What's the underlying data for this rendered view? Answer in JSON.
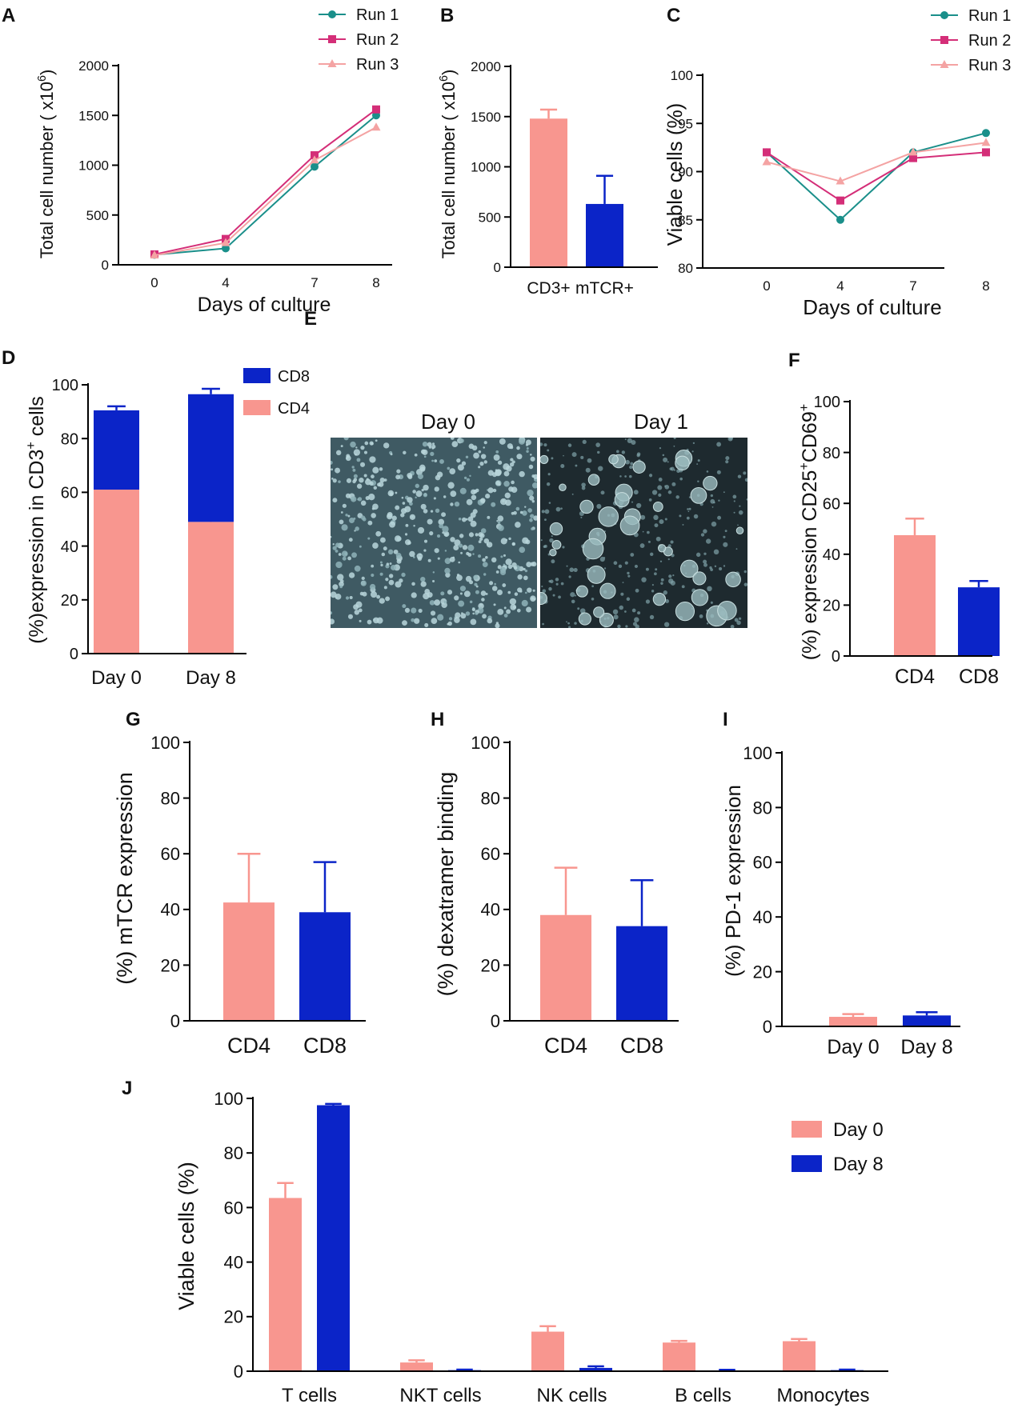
{
  "colors": {
    "pink": "#F8968F",
    "blue": "#0B24C8",
    "teal": "#1A8F8A",
    "magenta": "#D42E78",
    "lightpink": "#F4A3A3"
  },
  "chart_data": [
    {
      "id": "A",
      "panel_label": "A",
      "type": "line",
      "x": [
        0,
        4,
        7,
        8
      ],
      "series": [
        {
          "name": "Run 1",
          "values": [
            100,
            165,
            985,
            1500
          ],
          "color": "#1A8F8A",
          "marker": "circle"
        },
        {
          "name": "Run 2",
          "values": [
            105,
            260,
            1100,
            1560
          ],
          "color": "#D42E78",
          "marker": "square"
        },
        {
          "name": "Run 3",
          "values": [
            95,
            220,
            1050,
            1380
          ],
          "color": "#F4A3A3",
          "marker": "triangle"
        }
      ],
      "ylim": [
        0,
        2000
      ],
      "yticks": [
        0,
        500,
        1000,
        1500,
        2000
      ],
      "xticks": [
        "0",
        "4",
        "7",
        "8"
      ],
      "xlabel": "Days of culture",
      "ylabel_main": "Total cell number ( x10",
      "ylabel_sup": "6",
      "ylabel_end": ")"
    },
    {
      "id": "B",
      "panel_label": "B",
      "type": "bar",
      "categories": [
        "CD3+",
        "mTCR+"
      ],
      "values": [
        1480,
        630
      ],
      "errors": [
        90,
        280
      ],
      "colors": [
        "#F8968F",
        "#0B24C8"
      ],
      "ylim": [
        0,
        2000
      ],
      "yticks": [
        0,
        500,
        1000,
        1500,
        2000
      ],
      "ylabel_main": "Total cell number ( x10",
      "ylabel_sup": "6",
      "ylabel_end": ")"
    },
    {
      "id": "C",
      "panel_label": "C",
      "type": "line",
      "x": [
        0,
        4,
        7,
        8
      ],
      "series": [
        {
          "name": "Run 1",
          "values": [
            92,
            85,
            92,
            94
          ],
          "color": "#1A8F8A",
          "marker": "circle"
        },
        {
          "name": "Run 2",
          "values": [
            92,
            87,
            91.4,
            92
          ],
          "color": "#D42E78",
          "marker": "square"
        },
        {
          "name": "Run 3",
          "values": [
            91,
            89,
            92,
            93
          ],
          "color": "#F4A3A3",
          "marker": "triangle"
        }
      ],
      "ylim": [
        80,
        100
      ],
      "yticks": [
        80,
        85,
        90,
        95,
        100
      ],
      "xticks": [
        "0",
        "4",
        "7",
        "8"
      ],
      "xlabel": "Days of culture",
      "ylabel": "Viable cells (%)"
    },
    {
      "id": "D",
      "panel_label": "D",
      "type": "bar",
      "stacked": true,
      "categories": [
        "Day 0",
        "Day 8"
      ],
      "series": [
        {
          "name": "CD4",
          "values": [
            61,
            49
          ],
          "errors": [
            1,
            1
          ],
          "color": "#F8968F"
        },
        {
          "name": "CD8",
          "values": [
            29.5,
            47.5
          ],
          "errors": [
            1.5,
            2
          ],
          "color": "#0B24C8"
        }
      ],
      "legend_order": [
        "CD8",
        "CD4"
      ],
      "ylim": [
        0,
        100
      ],
      "yticks": [
        0,
        20,
        40,
        60,
        80,
        100
      ],
      "ylabel_main": "(%)expression in CD3",
      "ylabel_sup": "+",
      "ylabel_end": " cells"
    },
    {
      "id": "F",
      "panel_label": "F",
      "type": "bar",
      "categories": [
        "CD4",
        "CD8"
      ],
      "values": [
        47.5,
        27
      ],
      "errors": [
        6.5,
        2.5
      ],
      "colors": [
        "#F8968F",
        "#0B24C8"
      ],
      "ylim": [
        0,
        100
      ],
      "yticks": [
        0,
        20,
        40,
        60,
        80,
        100
      ],
      "ylabel_parts": [
        "(%) expression CD25",
        "+",
        "CD69",
        "+"
      ]
    },
    {
      "id": "G",
      "panel_label": "G",
      "type": "bar",
      "categories": [
        "CD4",
        "CD8"
      ],
      "values": [
        42.5,
        39
      ],
      "errors": [
        17.5,
        18
      ],
      "colors": [
        "#F8968F",
        "#0B24C8"
      ],
      "ylim": [
        0,
        100
      ],
      "yticks": [
        0,
        20,
        40,
        60,
        80,
        100
      ],
      "ylabel": "(%) mTCR expression"
    },
    {
      "id": "H",
      "panel_label": "H",
      "type": "bar",
      "categories": [
        "CD4",
        "CD8"
      ],
      "values": [
        38,
        34
      ],
      "errors": [
        17,
        16.5
      ],
      "colors": [
        "#F8968F",
        "#0B24C8"
      ],
      "ylim": [
        0,
        100
      ],
      "yticks": [
        0,
        20,
        40,
        60,
        80,
        100
      ],
      "ylabel": "(%) dexatramer binding"
    },
    {
      "id": "I",
      "panel_label": "I",
      "type": "bar",
      "categories": [
        "Day 0",
        "Day 8"
      ],
      "values": [
        3.5,
        4
      ],
      "errors": [
        1,
        1.2
      ],
      "colors": [
        "#F8968F",
        "#0B24C8"
      ],
      "ylim": [
        0,
        100
      ],
      "yticks": [
        0,
        20,
        40,
        60,
        80,
        100
      ],
      "ylabel": "(%) PD-1 expression"
    },
    {
      "id": "J",
      "panel_label": "J",
      "type": "bar",
      "categories": [
        "T cells",
        "NKT cells",
        "NK cells",
        "B cells",
        "Monocytes"
      ],
      "series": [
        {
          "name": "Day 0",
          "values": [
            63.5,
            3.2,
            14.5,
            10.5,
            11
          ],
          "errors": [
            5.5,
            0.8,
            2,
            0.6,
            0.8
          ],
          "color": "#F8968F"
        },
        {
          "name": "Day 8",
          "values": [
            97.5,
            0.4,
            1.2,
            0.3,
            0.4
          ],
          "errors": [
            0.5,
            0.2,
            0.6,
            0.2,
            0.2
          ],
          "color": "#0B24C8"
        }
      ],
      "ylim": [
        0,
        100
      ],
      "yticks": [
        0,
        20,
        40,
        60,
        80,
        100
      ],
      "ylabel": "Viable cells (%)"
    }
  ],
  "image_panel": {
    "panel_label": "E",
    "captions": [
      "Day 0",
      "Day 1"
    ]
  }
}
